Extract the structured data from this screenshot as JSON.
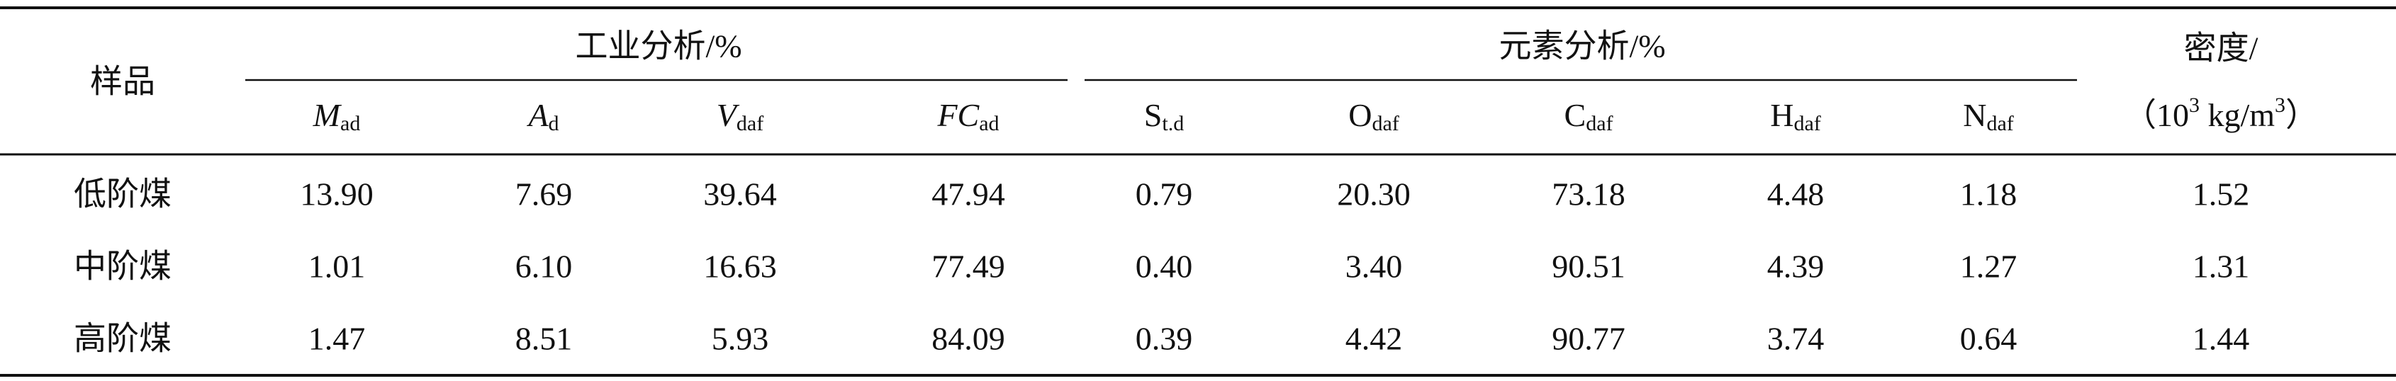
{
  "table": {
    "header": {
      "sample": "样品",
      "groups": [
        "工业分析/%",
        "元素分析/%"
      ],
      "columns": [
        {
          "symbol": "M",
          "sub": "ad"
        },
        {
          "symbol": "A",
          "sub": "d"
        },
        {
          "symbol": "V",
          "sub": "daf"
        },
        {
          "symbol": "FC",
          "sub": "ad"
        },
        {
          "symbol": "S",
          "sub": "t.d"
        },
        {
          "symbol": "O",
          "sub": "daf"
        },
        {
          "symbol": "C",
          "sub": "daf"
        },
        {
          "symbol": "H",
          "sub": "daf"
        },
        {
          "symbol": "N",
          "sub": "daf"
        }
      ],
      "density": {
        "line1": "密度/",
        "line2": [
          "（10",
          "3",
          " kg/m",
          "3",
          "）"
        ]
      }
    },
    "rows": [
      [
        "低阶煤",
        "13.90",
        "7.69",
        "39.64",
        "47.94",
        "0.79",
        "20.30",
        "73.18",
        "4.48",
        "1.18",
        "1.52"
      ],
      [
        "中阶煤",
        "1.01",
        "6.10",
        "16.63",
        "77.49",
        "0.40",
        "3.40",
        "90.51",
        "4.39",
        "1.27",
        "1.31"
      ],
      [
        "高阶煤",
        "1.47",
        "8.51",
        "5.93",
        "84.09",
        "0.39",
        "4.42",
        "90.77",
        "3.74",
        "0.64",
        "1.44"
      ]
    ]
  }
}
